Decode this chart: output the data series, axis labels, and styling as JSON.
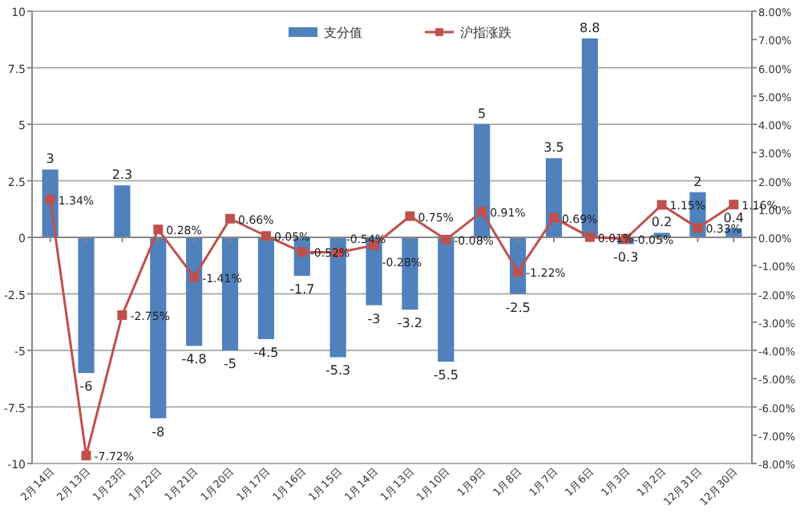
{
  "chart_data": {
    "type": "bar",
    "categories": [
      "2月14日",
      "2月13日",
      "1月23日",
      "1月22日",
      "1月21日",
      "1月20日",
      "1月17日",
      "1月16日",
      "1月15日",
      "1月14日",
      "1月13日",
      "1月10日",
      "1月9日",
      "1月8日",
      "1月7日",
      "1月6日",
      "1月3日",
      "1月2日",
      "12月31日",
      "12月30日"
    ],
    "series": [
      {
        "name": "支分值",
        "color": "#4f81bd",
        "values": [
          3,
          -6,
          2.3,
          -8,
          -4.8,
          -5,
          -4.5,
          -1.7,
          -5.3,
          -3,
          -3.2,
          -5.5,
          5,
          -2.5,
          3.5,
          8.8,
          -0.3,
          0.2,
          2,
          0.4
        ],
        "value_labels": [
          "3",
          "-6",
          "2.3",
          "-8",
          "-4.8",
          "-5",
          "-4.5",
          "-1.7",
          "-5.3",
          "-3",
          "-3.2",
          "-5.5",
          "5",
          "-2.5",
          "3.5",
          "8.8",
          "-0.3",
          "0.2",
          "2",
          "0.4"
        ]
      },
      {
        "name": "沪指涨跌",
        "type": "line",
        "axis": "y2",
        "color": "#c0504d",
        "marker": "square",
        "values": [
          1.34,
          -7.72,
          -2.75,
          0.28,
          -1.41,
          0.66,
          0.05,
          -0.52,
          -0.54,
          -0.28,
          0.75,
          -0.08,
          0.91,
          -1.22,
          0.69,
          0.01,
          -0.05,
          1.15,
          0.33,
          1.16
        ],
        "value_labels": [
          "1.34%",
          "-7.72%",
          "-2.75%",
          "0.28%",
          "-1.41%",
          "0.66%",
          "0.05%",
          "-0.52%",
          "-0.54%",
          "-0.28%",
          "0.75%",
          "-0.08%",
          "0.91%",
          "-1.22%",
          "0.69%",
          "0.01%",
          "-0.05%",
          "1.15%",
          "0.33%",
          "1.16%"
        ]
      }
    ],
    "ylim": [
      -10,
      10
    ],
    "yticks": [
      -10,
      -7.5,
      -5,
      -2.5,
      0,
      2.5,
      5,
      7.5,
      10
    ],
    "y2lim": [
      -8,
      8
    ],
    "y2ticks": [
      {
        "value": -8,
        "label": "-8.00%"
      },
      {
        "value": -7,
        "label": "-7.00%"
      },
      {
        "value": -6,
        "label": "-6.00%"
      },
      {
        "value": -5,
        "label": "-5.00%"
      },
      {
        "value": -4,
        "label": "-4.00%"
      },
      {
        "value": -3,
        "label": "-3.00%"
      },
      {
        "value": -2,
        "label": "-2.00%"
      },
      {
        "value": -1,
        "label": "-1.00%"
      },
      {
        "value": 0,
        "label": "0.00%"
      },
      {
        "value": 1,
        "label": "1.00%"
      },
      {
        "value": 2,
        "label": "2.00%"
      },
      {
        "value": 3,
        "label": "3.00%"
      },
      {
        "value": 4,
        "label": "4.00%"
      },
      {
        "value": 5,
        "label": "5.00%"
      },
      {
        "value": 6,
        "label": "6.00%"
      },
      {
        "value": 7,
        "label": "7.00%"
      },
      {
        "value": 8,
        "label": "8.00%"
      }
    ],
    "grid": "y",
    "legend": "top"
  }
}
